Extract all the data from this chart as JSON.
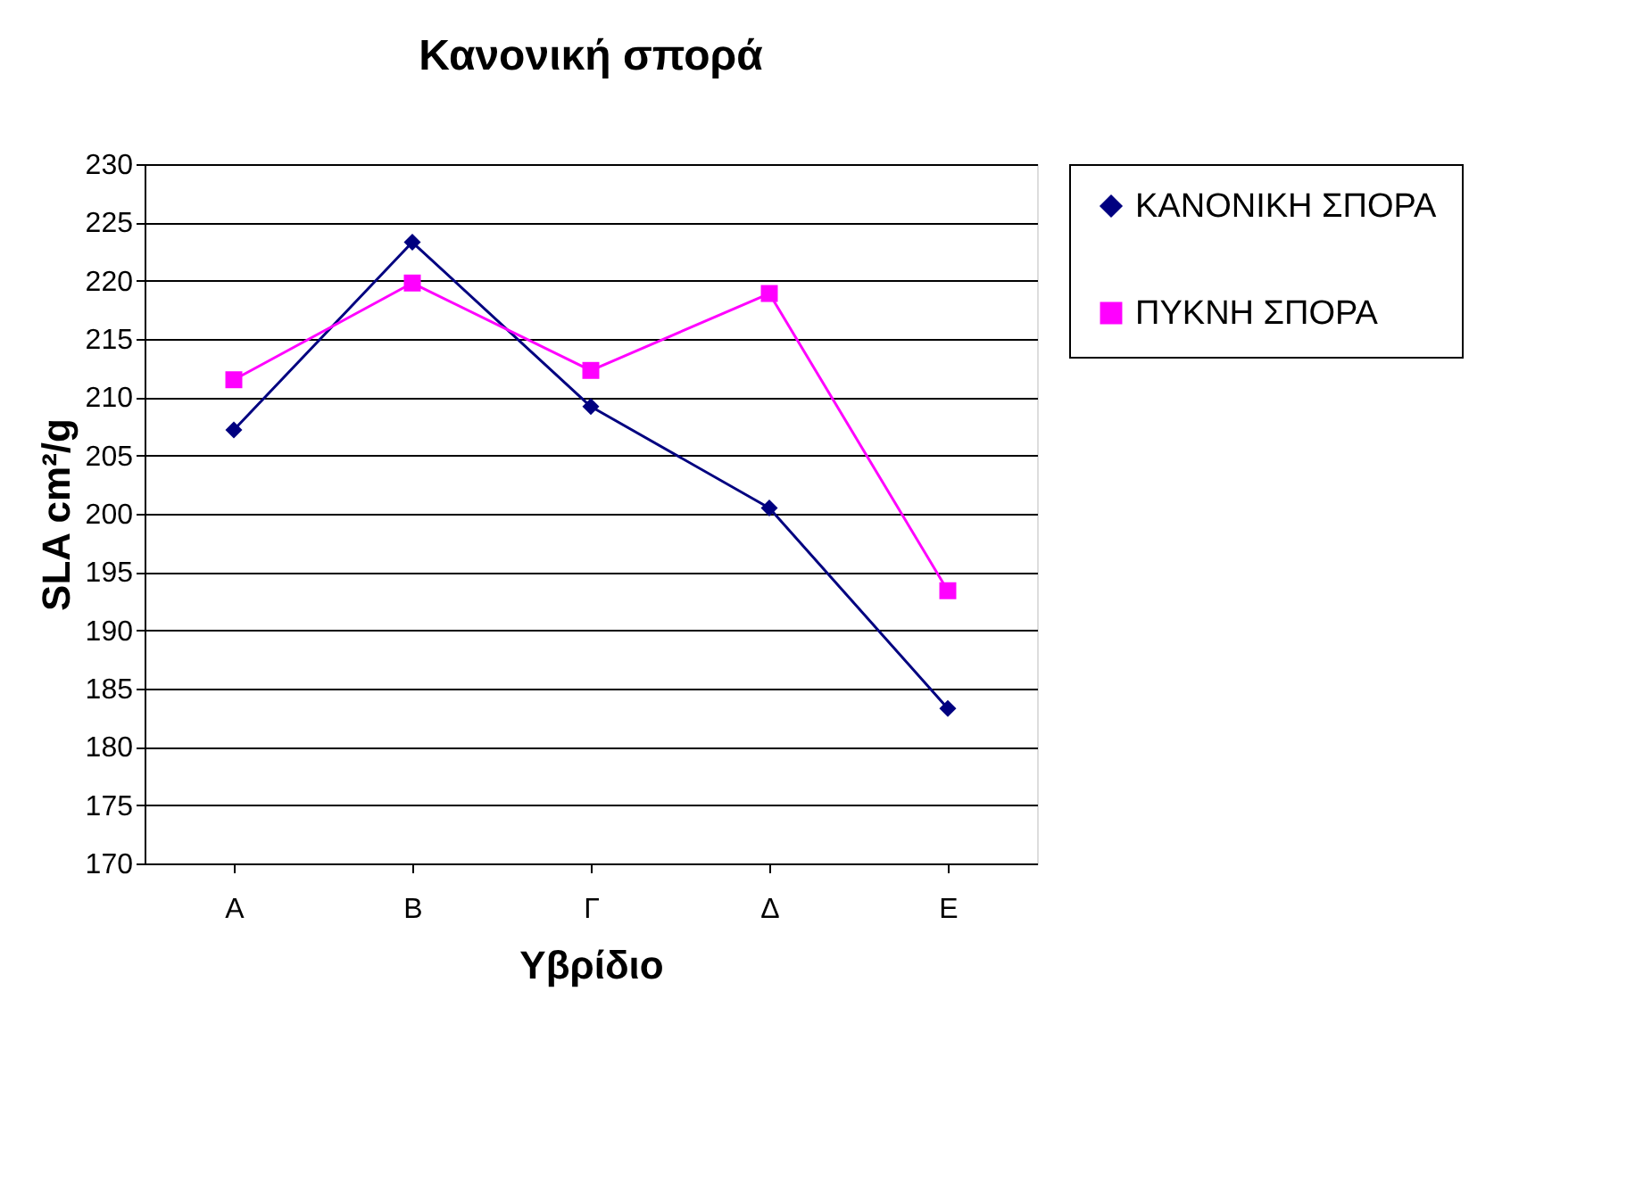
{
  "chart_data": {
    "type": "line",
    "title": "Κανονική σπορά",
    "xlabel": "Υβρίδιο",
    "ylabel": "SLA cm²/g",
    "categories": [
      "Α",
      "Β",
      "Γ",
      "Δ",
      "Ε"
    ],
    "series": [
      {
        "name": "ΚΑΝΟΝΙΚΗ ΣΠΟΡΑ",
        "color": "#000080",
        "marker": "diamond",
        "values": [
          207.2,
          223.3,
          209.2,
          200.5,
          183.3
        ]
      },
      {
        "name": "ΠΥΚΝΗ ΣΠΟΡΑ",
        "color": "#ff00ff",
        "marker": "square",
        "values": [
          211.5,
          219.8,
          212.3,
          218.9,
          193.4
        ]
      }
    ],
    "ylim": [
      170,
      230
    ],
    "yticks": [
      170,
      175,
      180,
      185,
      190,
      195,
      200,
      205,
      210,
      215,
      220,
      225,
      230
    ],
    "grid": "y",
    "legend": "right",
    "line_style": "solid"
  }
}
